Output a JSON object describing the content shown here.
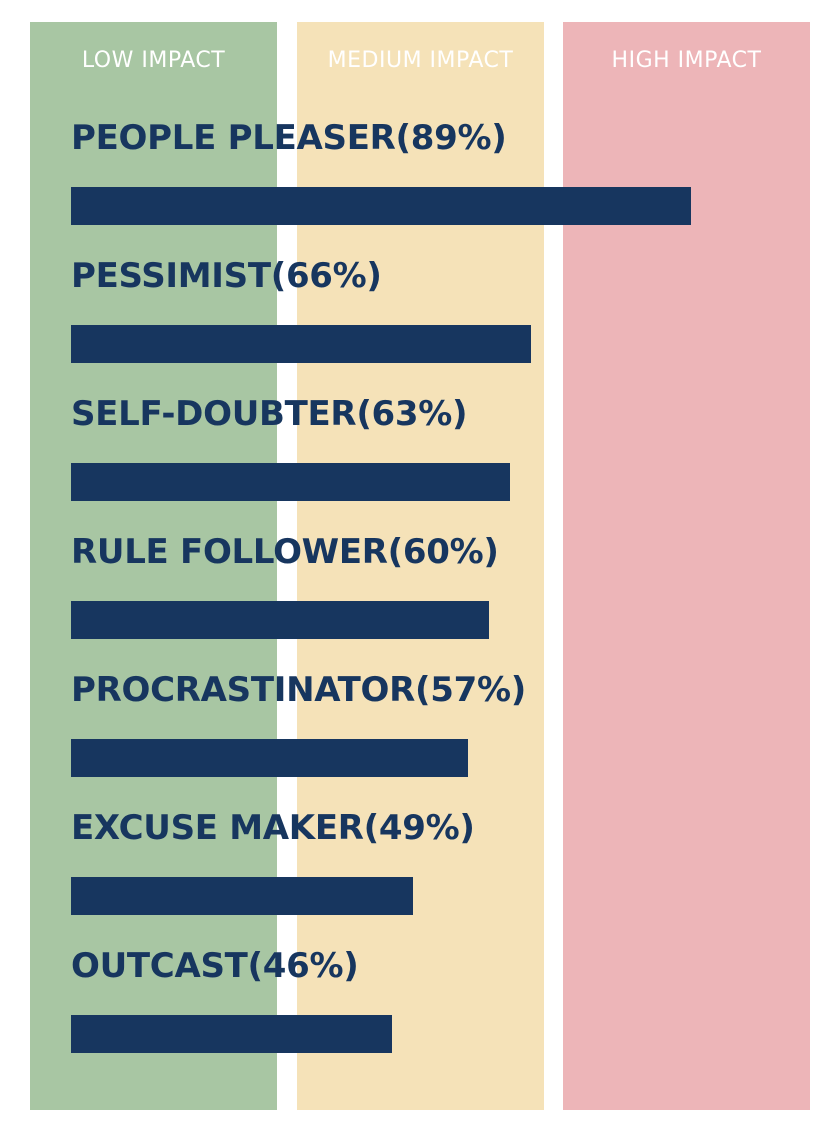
{
  "chart_data": {
    "type": "bar",
    "orientation": "horizontal",
    "categories": [
      "PEOPLE PLEASER",
      "PESSIMIST",
      "SELF-DOUBTER",
      "RULE FOLLOWER",
      "PROCRASTINATOR",
      "EXCUSE MAKER",
      "OUTCAST"
    ],
    "labels": [
      "PEOPLE PLEASER(89%)",
      "PESSIMIST(66%)",
      "SELF-DOUBTER(63%)",
      "RULE FOLLOWER(60%)",
      "PROCRASTINATOR(57%)",
      "EXCUSE MAKER(49%)",
      "OUTCAST(46%)"
    ],
    "values": [
      89,
      66,
      63,
      60,
      57,
      49,
      46
    ],
    "unit": "%",
    "xlim": [
      0,
      100
    ],
    "zones": [
      {
        "label": "LOW IMPACT",
        "color": "#a8c6a3"
      },
      {
        "label": "MEDIUM IMPACT",
        "color": "#f5e2b8"
      },
      {
        "label": "HIGH IMPACT",
        "color": "#edb5b8"
      }
    ],
    "bar_color": "#17365f",
    "label_color": "#17365f",
    "title": "",
    "xlabel": "",
    "ylabel": "",
    "grid": false,
    "legend": "none"
  }
}
